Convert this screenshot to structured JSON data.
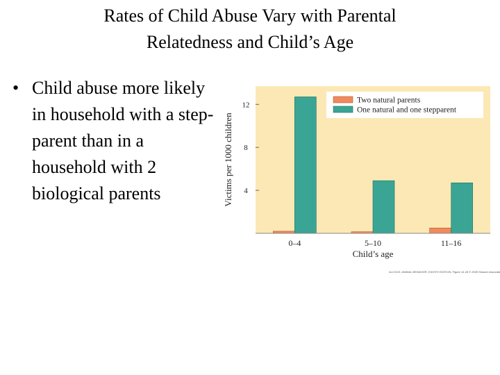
{
  "slide": {
    "title_lines": [
      "Rates of Child Abuse Vary with Parental",
      "Relatedness and Child’s Age"
    ],
    "bullet_marker": "•",
    "bullet_text": "Child abuse more likely in household with a step-parent than in a household with 2 biological parents"
  },
  "chart_data": {
    "type": "bar",
    "categories": [
      "0–4",
      "5–10",
      "11–16"
    ],
    "series": [
      {
        "name": "Two natural parents",
        "values": [
          0.2,
          0.15,
          0.5
        ],
        "color": "#f08a5d"
      },
      {
        "name": "One natural and one stepparent",
        "values": [
          12.7,
          4.9,
          4.7
        ],
        "color": "#3aa595"
      }
    ],
    "xlabel": "Child’s age",
    "ylabel": "Victims per 1000 children",
    "yticks": [
      4,
      8,
      12
    ],
    "ylim": [
      0,
      13.7
    ],
    "grid": false,
    "legend_position": "top-right",
    "background": "#fbe8b4",
    "credit": "ALCOCK: ANIMAL BEHAVIOR, EIGHTH EDITION, Figure 14.28 © 2005 Sinauer Associates, Inc."
  }
}
